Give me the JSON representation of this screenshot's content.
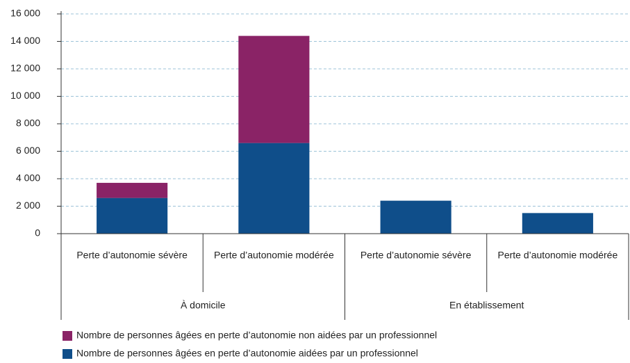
{
  "chart_data": {
    "type": "stacked_bar",
    "categories": [
      "Perte d’autonomie sévère",
      "Perte d’autonomie modérée",
      "Perte d’autonomie sévère",
      "Perte d’autonomie modérée"
    ],
    "groups": [
      "À domicile",
      "En établissement"
    ],
    "series": [
      {
        "name": "Nombre de personnes âgées en perte d’autonomie aidées par un professionnel",
        "color": "#0f4e8a",
        "values": [
          2600,
          6600,
          2400,
          1500
        ]
      },
      {
        "name": "Nombre de personnes âgées en perte d’autonomie non aidées par un professionnel",
        "color": "#8a2366",
        "values": [
          1100,
          7800,
          null,
          null
        ]
      }
    ],
    "ylim": [
      0,
      16000
    ],
    "yticks": [
      0,
      {
        "value": 2000,
        "label": "2 000"
      },
      {
        "value": 4000,
        "label": "4 000"
      },
      {
        "value": 6000,
        "label": "6 000"
      },
      {
        "value": 8000,
        "label": "8 000"
      },
      {
        "value": 10000,
        "label": "10 000"
      },
      {
        "value": 12000,
        "label": "12 000"
      },
      {
        "value": 14000,
        "label": "14 000"
      },
      {
        "value": 16000,
        "label": "16 000"
      }
    ],
    "grid": true
  }
}
